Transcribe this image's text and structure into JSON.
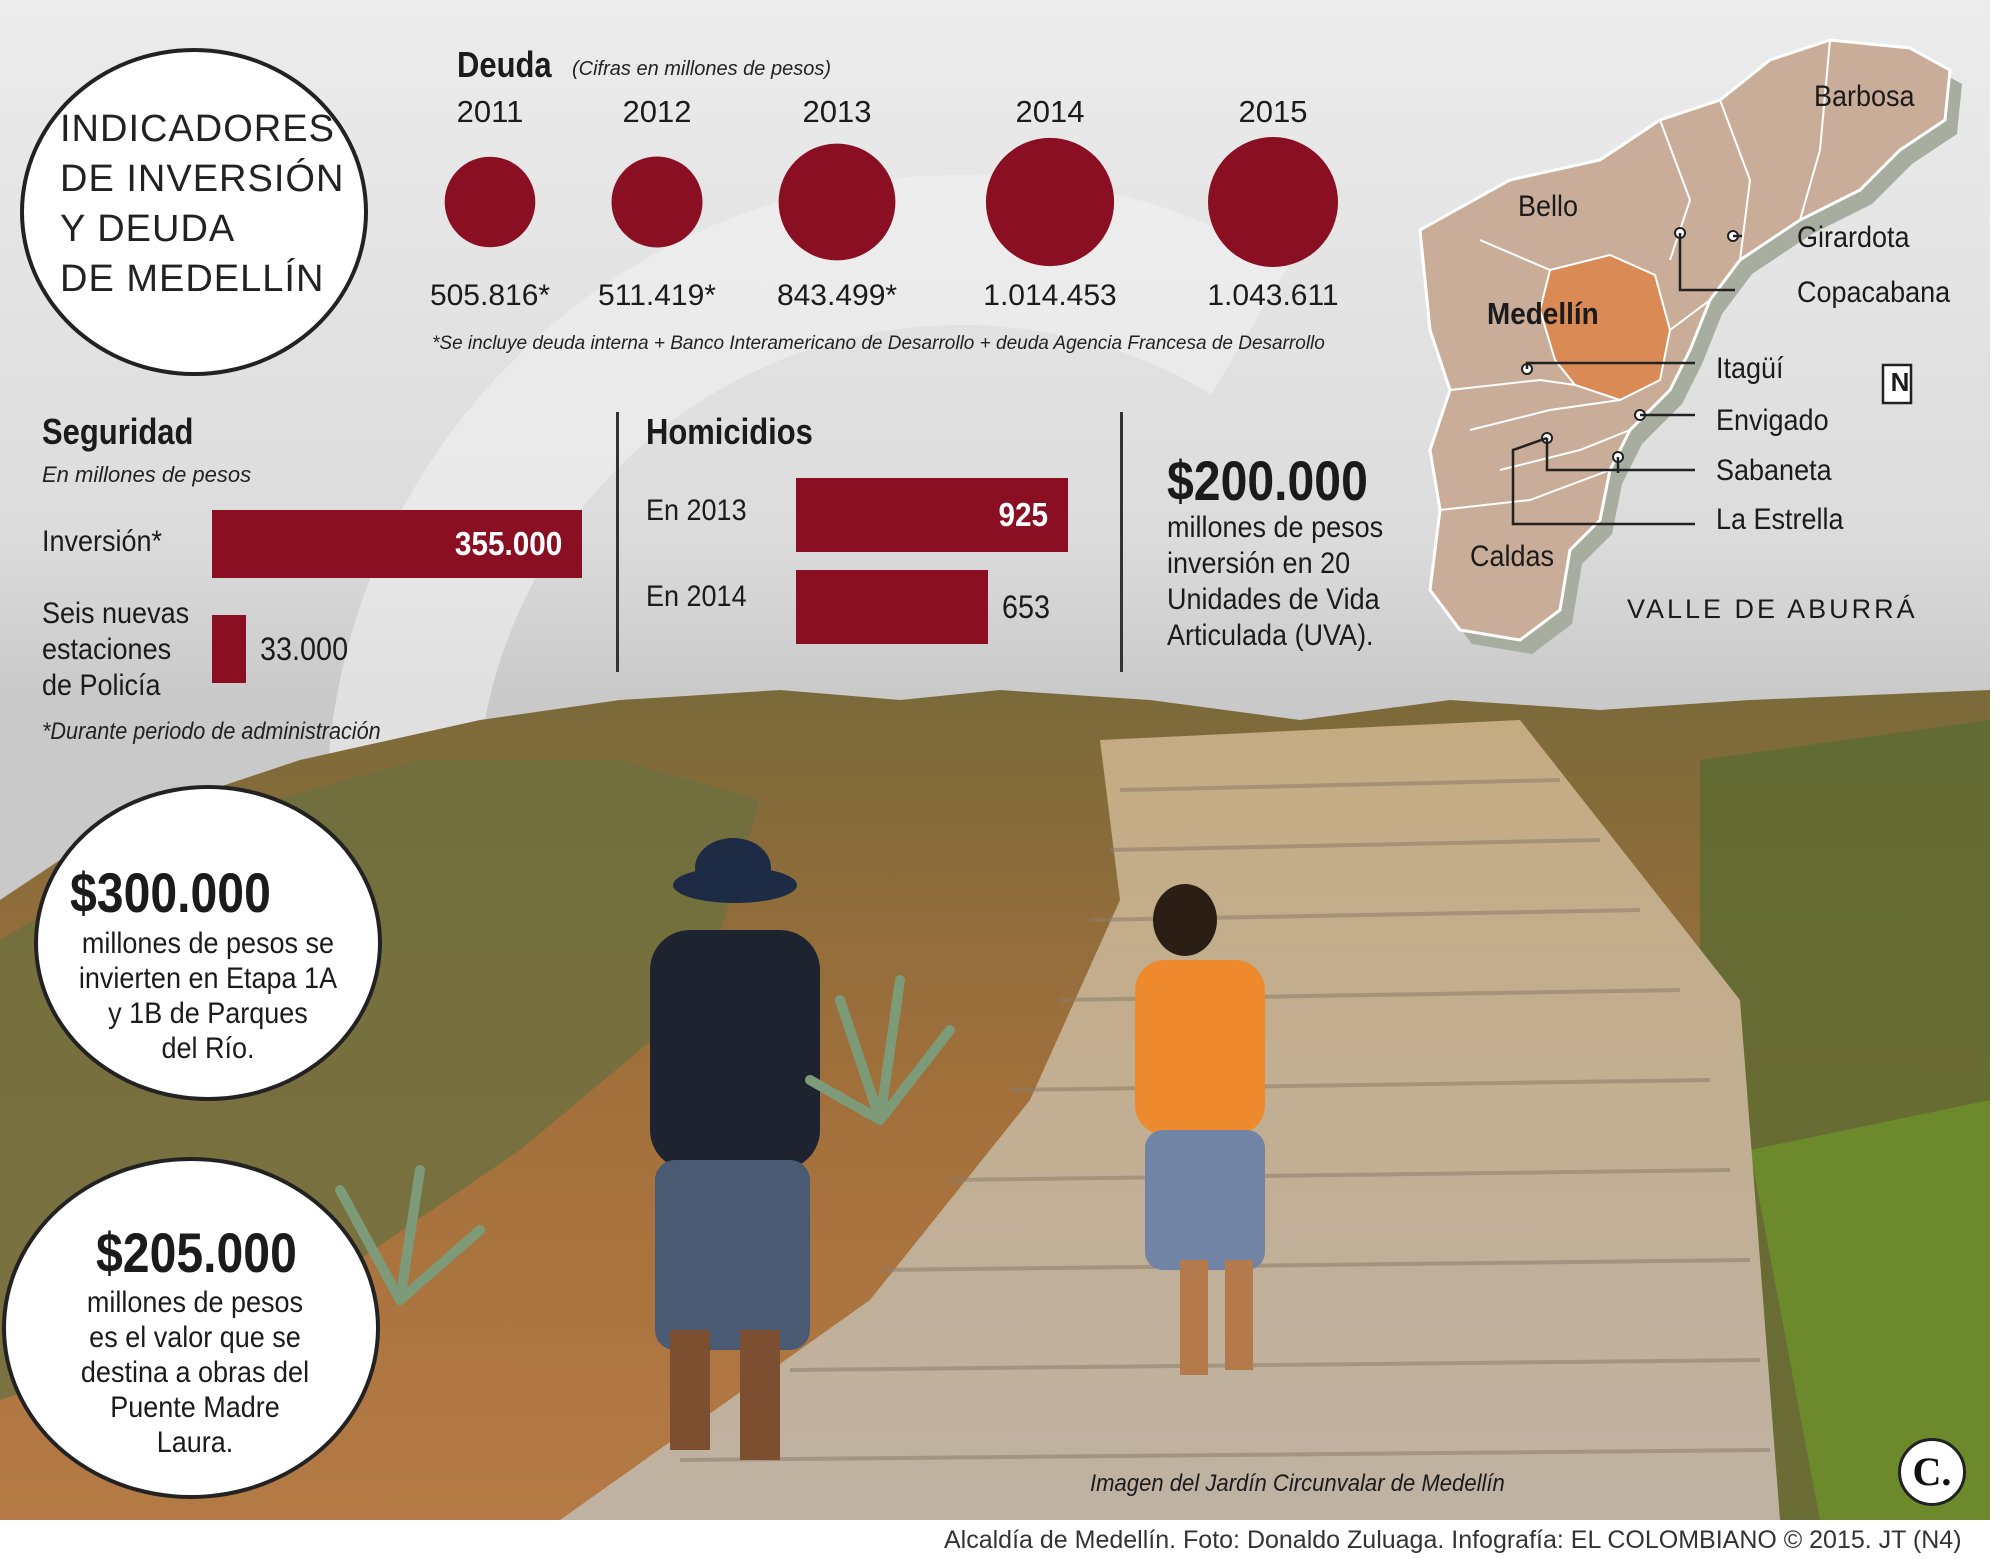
{
  "title": {
    "lines": [
      "INDICADORES",
      "DE INVERSIÓN",
      "Y DEUDA",
      "DE MEDELLÍN"
    ]
  },
  "chart_data": [
    {
      "type": "bubble",
      "title": "Deuda",
      "subtitle": "(Cifras en millones de pesos)",
      "categories": [
        "2011",
        "2012",
        "2013",
        "2014",
        "2015"
      ],
      "values": [
        505816,
        511419,
        843499,
        1014453,
        1043611
      ],
      "value_labels": [
        "505.816*",
        "511.419*",
        "843.499*",
        "1.014.453",
        "1.043.611"
      ],
      "footnote": "*Se incluye deuda interna + Banco Interamericano de Desarrollo + deuda Agencia Francesa de Desarrollo",
      "color": "#8a0f23"
    },
    {
      "type": "bar",
      "orientation": "horizontal",
      "title": "Seguridad",
      "subtitle": "En millones de pesos",
      "categories": [
        "Inversión*",
        "Seis nuevas estaciones de Policía"
      ],
      "category_lines": [
        [
          "Inversión*"
        ],
        [
          "Seis nuevas",
          "estaciones",
          "de Policía"
        ]
      ],
      "values": [
        355000,
        33000
      ],
      "value_labels": [
        "355.000",
        "33.000"
      ],
      "footnote": "*Durante periodo de administración",
      "color": "#8a0f23"
    },
    {
      "type": "bar",
      "orientation": "horizontal",
      "title": "Homicidios",
      "categories": [
        "En 2013",
        "En 2014"
      ],
      "values": [
        925,
        653
      ],
      "value_labels": [
        "925",
        "653"
      ],
      "color": "#8a0f23"
    }
  ],
  "uva": {
    "amount": "$200.000",
    "lines": [
      "millones de pesos",
      "inversión en 20",
      "Unidades de Vida",
      "Articulada (UVA)."
    ]
  },
  "parques": {
    "amount": "$300.000",
    "lines": [
      "millones de pesos se",
      "invierten en Etapa 1A",
      "y 1B de Parques",
      "del Río."
    ]
  },
  "puente": {
    "amount": "$205.000",
    "lines": [
      "millones de pesos",
      "es el valor que se",
      "destina a obras del",
      "Puente Madre",
      "Laura."
    ]
  },
  "map": {
    "region": "VALLE DE ABURRÁ",
    "north": "N",
    "places": {
      "barbosa": "Barbosa",
      "bello": "Bello",
      "girardota": "Girardota",
      "copacabana": "Copacabana",
      "medellin": "Medellín",
      "itagui": "Itagüí",
      "envigado": "Envigado",
      "sabaneta": "Sabaneta",
      "estrella": "La Estrella",
      "caldas": "Caldas"
    },
    "colors": {
      "municipality": "#c9ad98",
      "medellin": "#d98a55",
      "shadow": "#a7ad9f"
    }
  },
  "photo_caption": "Imagen del Jardín Circunvalar de Medellín",
  "logo": "C.",
  "credit": "Alcaldía de Medellín. Foto: Donaldo Zuluaga. Infografía: EL COLOMBIANO © 2015. JT (N4)"
}
